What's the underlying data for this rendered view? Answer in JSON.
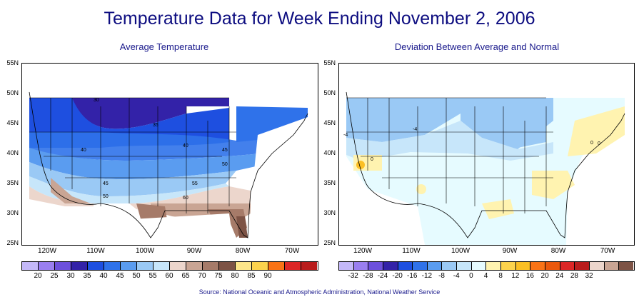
{
  "title": "Temperature Data for Week Ending November 2, 2006",
  "left_map": {
    "subtitle": "Average Temperature",
    "lat_labels": [
      "55N",
      "50N",
      "45N",
      "40N",
      "35N",
      "30N",
      "25N"
    ],
    "lon_labels": [
      "120W",
      "110W",
      "100W",
      "90W",
      "80W",
      "70W"
    ],
    "contour_labels": [
      "30",
      "35",
      "40",
      "40",
      "45",
      "50",
      "45",
      "50",
      "55",
      "60"
    ],
    "legend_labels": [
      "20",
      "25",
      "30",
      "35",
      "40",
      "45",
      "50",
      "55",
      "60",
      "65",
      "70",
      "75",
      "80",
      "85",
      "90"
    ],
    "legend_colors": [
      "#c4b8f8",
      "#9a7ff0",
      "#6d50dc",
      "#3322a8",
      "#1e4fe0",
      "#2f72ea",
      "#5a9cf0",
      "#9ac9f5",
      "#c7e6fa",
      "#ecd6cc",
      "#c9a594",
      "#a67b69",
      "#7d5345",
      "#fde68a",
      "#fcd34d",
      "#f97316",
      "#dc2626",
      "#b91c1c"
    ]
  },
  "right_map": {
    "subtitle": "Deviation Between Average and Normal",
    "lat_labels": [
      "55N",
      "50N",
      "45N",
      "40N",
      "35N",
      "30N",
      "25N"
    ],
    "lon_labels": [
      "120W",
      "110W",
      "100W",
      "90W",
      "80W",
      "70W"
    ],
    "contour_labels": [
      "-4",
      "0",
      "-4",
      "0",
      "0"
    ],
    "legend_labels": [
      "-32",
      "-28",
      "-24",
      "-20",
      "-16",
      "-12",
      "-8",
      "-4",
      "0",
      "4",
      "8",
      "12",
      "16",
      "20",
      "24",
      "28",
      "32"
    ],
    "legend_colors": [
      "#c4b8f8",
      "#9a7ff0",
      "#6d50dc",
      "#3322a8",
      "#1e4fe0",
      "#2f72ea",
      "#5a9cf0",
      "#9ac9f5",
      "#c7e6fa",
      "#e6fbff",
      "#fff3b0",
      "#fcd34d",
      "#fbbf24",
      "#f97316",
      "#ea580c",
      "#dc2626",
      "#b91c1c",
      "#ecd6cc",
      "#c9a594",
      "#7d5345"
    ]
  },
  "source": "Source:  National Oceanic and Atmospheric Administration, National Weather Service"
}
